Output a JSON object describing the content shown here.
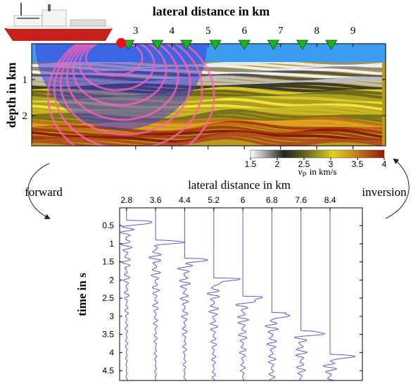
{
  "top_panel": {
    "xlabel": "lateral distance in km",
    "ylabel": "depth in km",
    "xlim": [
      0.13,
      9.9
    ],
    "xticks": [
      3,
      4,
      5,
      6,
      7,
      8,
      9
    ],
    "ylim": [
      0,
      2.84
    ],
    "yticks": [
      1,
      2
    ],
    "receivers": [
      2.8,
      3.6,
      4.4,
      5.2,
      6,
      6.8,
      7.6,
      8.4
    ],
    "source": 2.6
  },
  "colorbar": {
    "lim": [
      1.5,
      4
    ],
    "ticks": [
      1.5,
      2,
      2.5,
      3,
      3.5,
      4
    ],
    "label_v": "v",
    "label_sub": "P",
    "label_rest": "in km/s"
  },
  "bottom_panel": {
    "xlabel": "lateral distance in km",
    "ylabel": "time in s",
    "xlim": [
      2.61,
      9.29
    ],
    "xticks": [
      2.8,
      3.6,
      4.4,
      5.2,
      6,
      6.8,
      7.6,
      8.4
    ],
    "ylim": [
      0.01,
      4.77
    ],
    "yticks": [
      0.5,
      1,
      1.5,
      2,
      2.5,
      3,
      3.5,
      4,
      4.5
    ]
  },
  "arrows": {
    "left": "forward",
    "right": "inversion"
  }
}
